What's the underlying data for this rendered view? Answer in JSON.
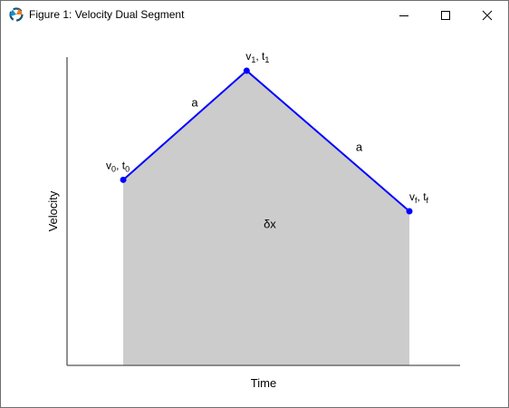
{
  "window": {
    "title": "Figure 1: Velocity Dual Segment",
    "app_icon": "matplotlib-logo-icon",
    "controls": [
      "minimize-icon",
      "maximize-icon",
      "close-icon"
    ]
  },
  "colors": {
    "line": "#0000ff",
    "point": "#0000ff",
    "fill": "#cccccc",
    "axis": "#555555"
  },
  "chart_data": {
    "type": "line",
    "title": "",
    "xlabel": "Time",
    "ylabel": "Velocity",
    "xlim": [
      0,
      10
    ],
    "ylim": [
      0,
      10
    ],
    "grid": false,
    "ticks": false,
    "points": [
      {
        "x": 1.43,
        "y": 6.02,
        "base": "v",
        "sub": "0",
        "sep": ", ",
        "base2": "t",
        "sub2": "0"
      },
      {
        "x": 4.57,
        "y": 9.56,
        "base": "v",
        "sub": "1",
        "sep": ", ",
        "base2": "t",
        "sub2": "1"
      },
      {
        "x": 8.71,
        "y": 5.0,
        "base": "v",
        "sub": "f",
        "sep": ", ",
        "base2": "t",
        "sub2": "f"
      }
    ],
    "segment_labels": [
      {
        "text": "a",
        "x": 3.25,
        "y": 8.4
      },
      {
        "text": "a",
        "x": 7.43,
        "y": 6.95
      }
    ],
    "area_label": {
      "text": "δx",
      "x": 5.16,
      "y": 4.45
    }
  }
}
